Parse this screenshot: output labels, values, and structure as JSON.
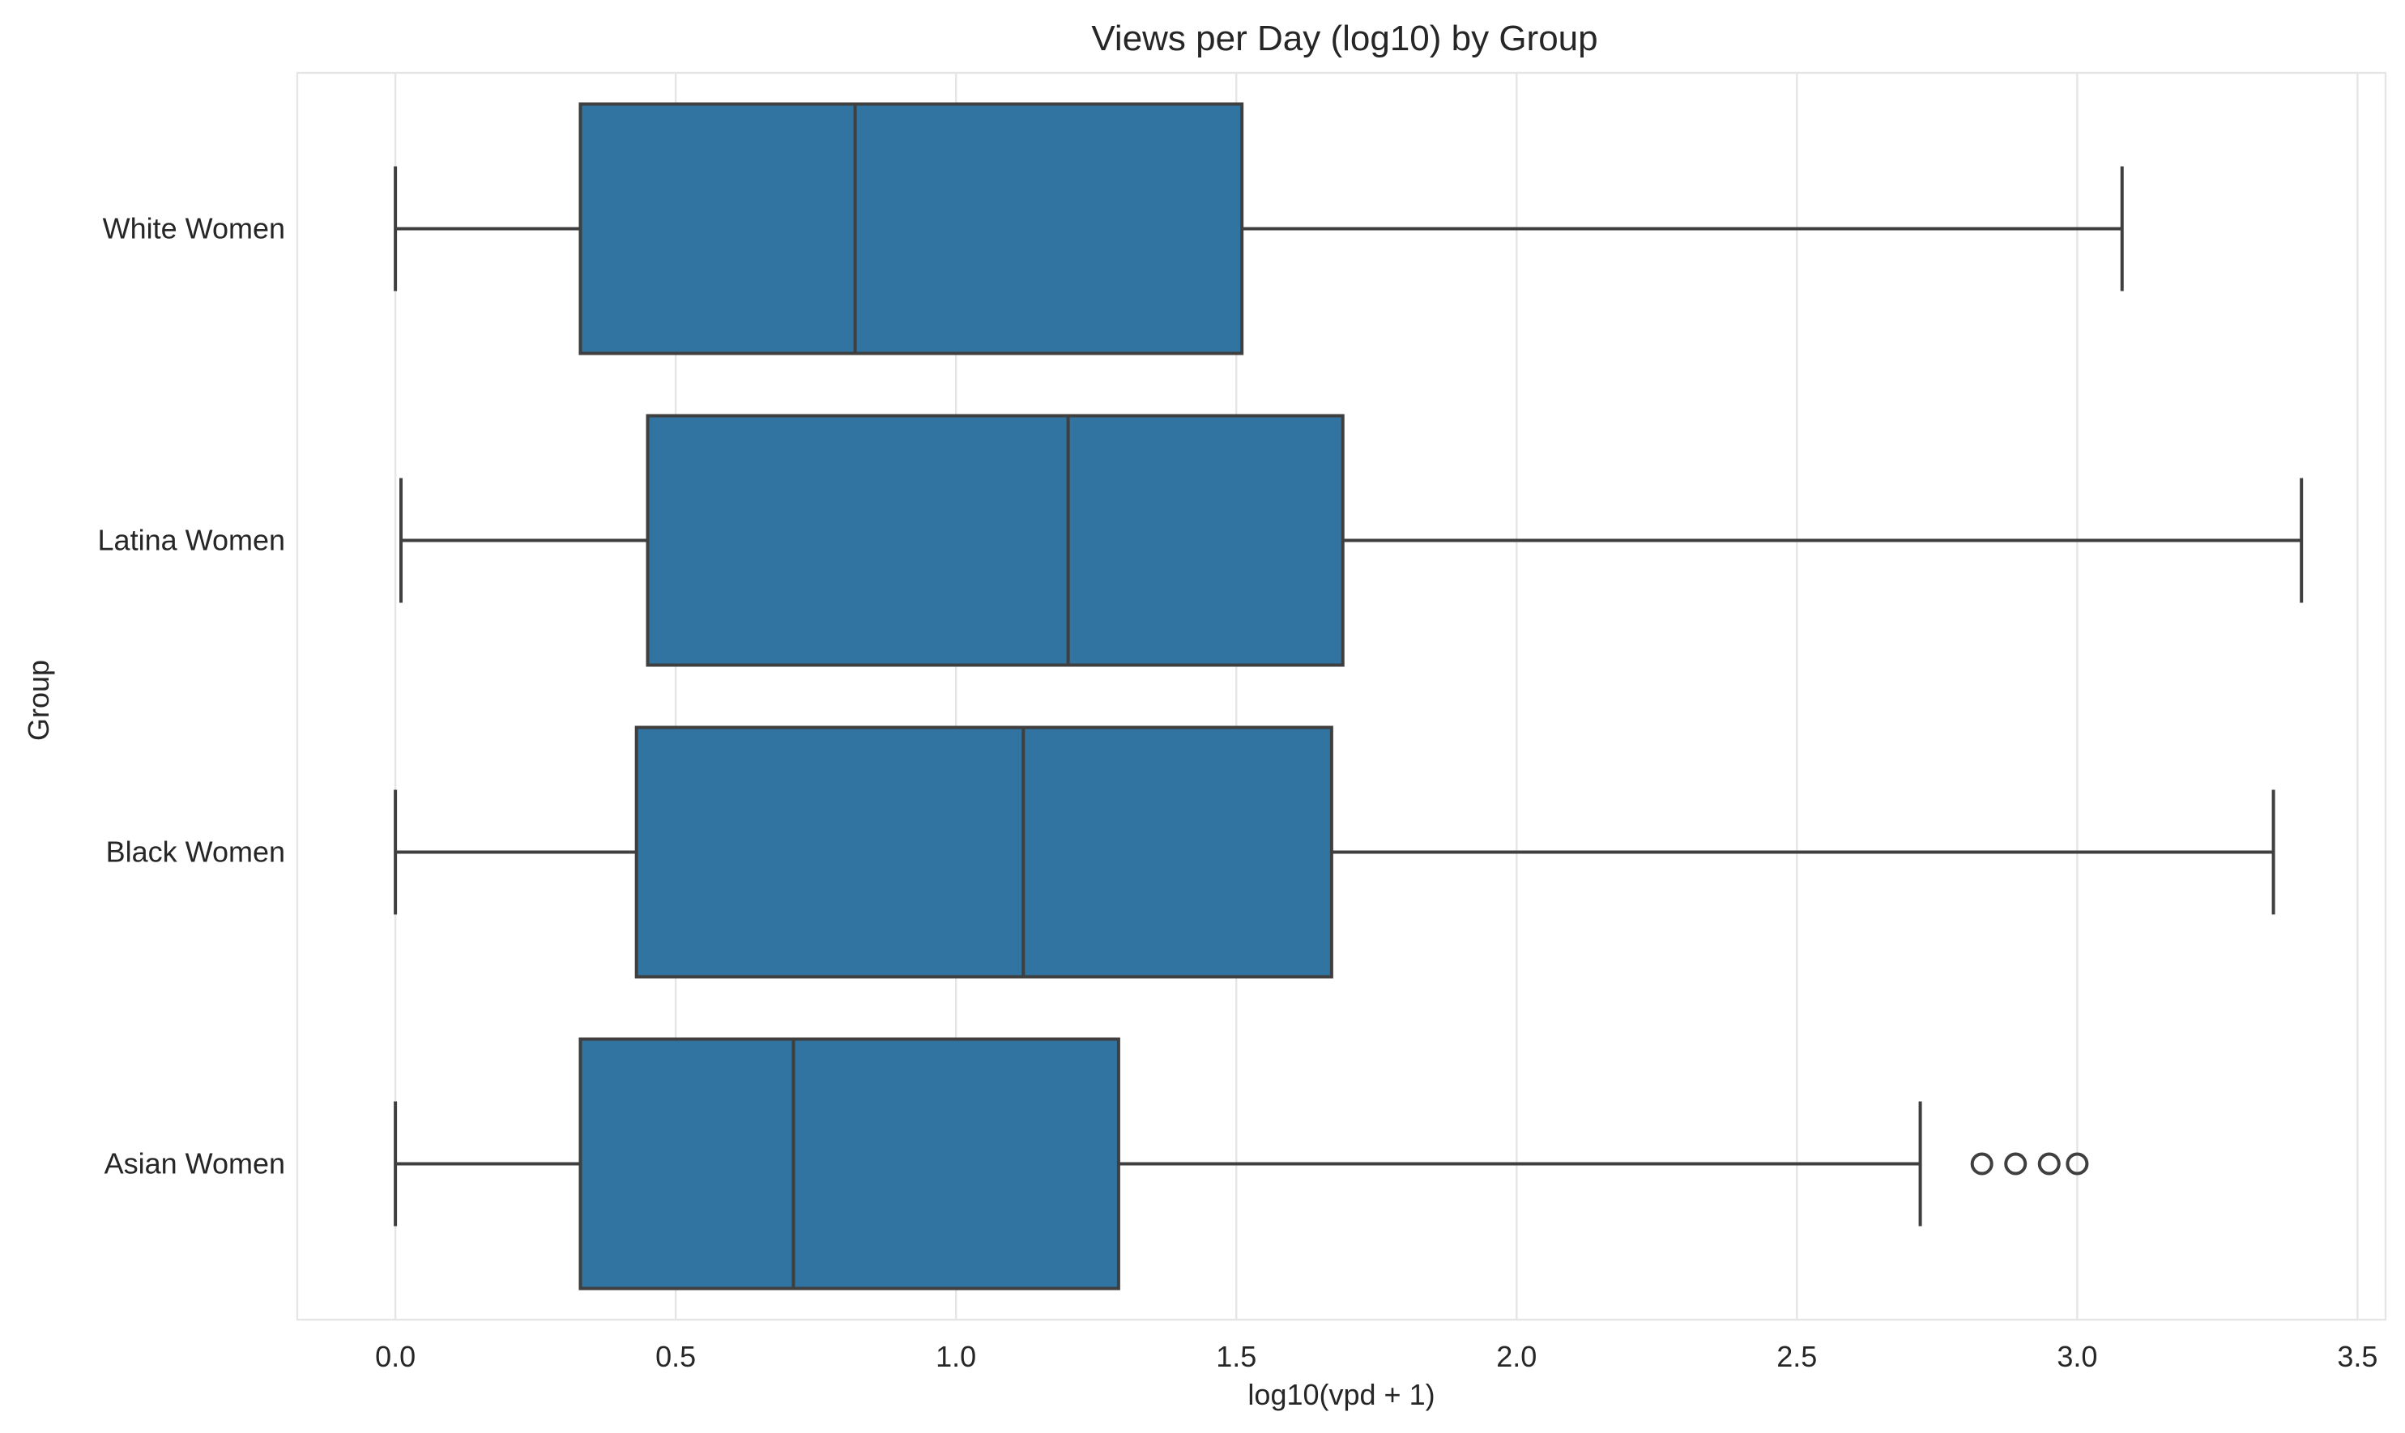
{
  "chart_data": {
    "type": "boxplot",
    "orientation": "horizontal",
    "title": "Views per Day (log10) by Group",
    "xlabel": "log10(vpd + 1)",
    "ylabel": "Group",
    "xlim": [
      -0.175,
      3.55
    ],
    "xticks": [
      "0.0",
      "0.5",
      "1.0",
      "1.5",
      "2.0",
      "2.5",
      "3.0",
      "3.5"
    ],
    "xtick_values": [
      0.0,
      0.5,
      1.0,
      1.5,
      2.0,
      2.5,
      3.0,
      3.5
    ],
    "categories": [
      "White Women",
      "Latina Women",
      "Black Women",
      "Asian Women"
    ],
    "box_color": "#3274a1",
    "line_color": "#3f3f3f",
    "grid": true,
    "boxes": [
      {
        "group": "White Women",
        "whisker_low": 0.0,
        "q1": 0.33,
        "median": 0.82,
        "q3": 1.51,
        "whisker_high": 3.08,
        "outliers": []
      },
      {
        "group": "Latina Women",
        "whisker_low": 0.01,
        "q1": 0.45,
        "median": 1.2,
        "q3": 1.69,
        "whisker_high": 3.4,
        "outliers": []
      },
      {
        "group": "Black Women",
        "whisker_low": 0.0,
        "q1": 0.43,
        "median": 1.12,
        "q3": 1.67,
        "whisker_high": 3.35,
        "outliers": []
      },
      {
        "group": "Asian Women",
        "whisker_low": 0.0,
        "q1": 0.33,
        "median": 0.71,
        "q3": 1.29,
        "whisker_high": 2.72,
        "outliers": [
          2.83,
          2.89,
          2.95,
          3.0
        ]
      }
    ]
  }
}
